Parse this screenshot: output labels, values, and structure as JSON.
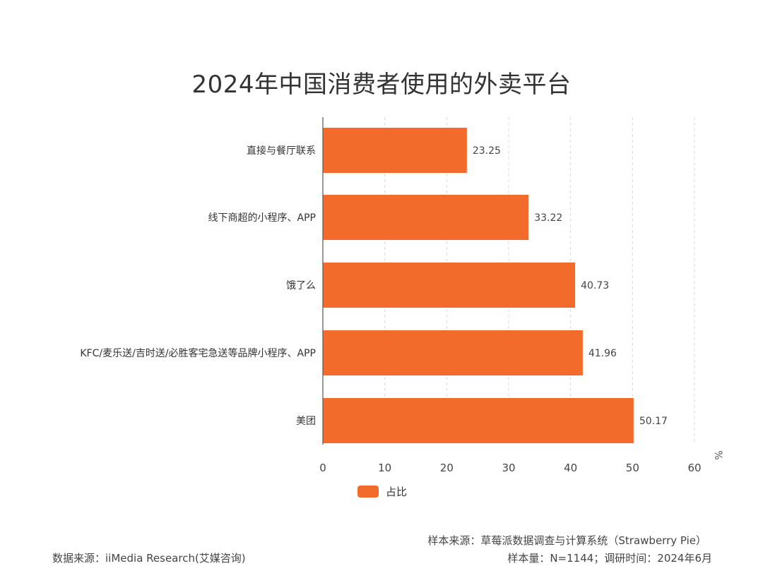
{
  "chart_data": {
    "type": "bar",
    "orientation": "horizontal",
    "title": "2024年中国消费者使用的外卖平台",
    "categories": [
      "直接与餐厅联系",
      "线下商超的小程序、APP",
      "饿了么",
      "KFC/麦乐送/吉时送/必胜客宅急送等品牌小程序、APP",
      "美团"
    ],
    "series": [
      {
        "name": "占比",
        "values": [
          23.25,
          33.22,
          40.73,
          41.96,
          50.17
        ],
        "color": "#F26B2B"
      }
    ],
    "xlim": [
      0,
      60
    ],
    "x_ticks": [
      0,
      10,
      20,
      30,
      40,
      50,
      60
    ],
    "unit_label": "%",
    "grid": "vertical-dashed",
    "legend_position": "bottom-center"
  },
  "footer": {
    "sample_source": "样本来源：草莓派数据调查与计算系统（Strawberry Pie）",
    "data_source": "数据来源：iiMedia Research(艾媒咨询)",
    "sample_size": "样本量：N=1144；调研时间：2024年6月"
  }
}
